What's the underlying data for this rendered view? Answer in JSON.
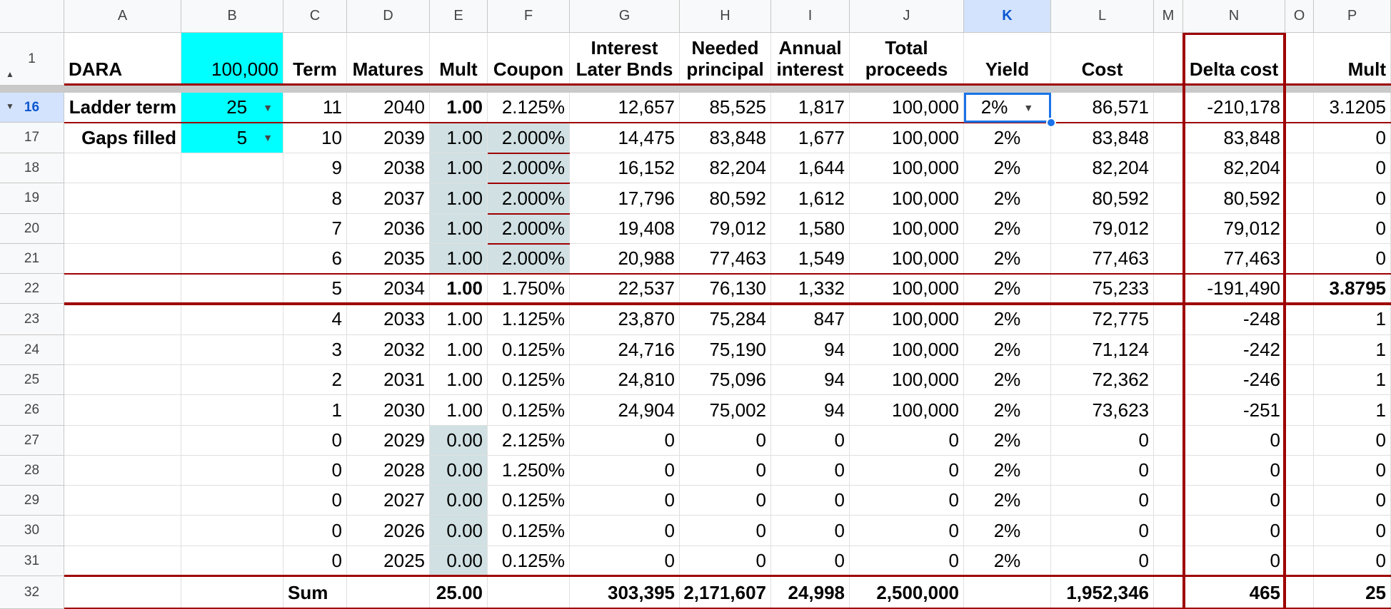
{
  "columns": [
    "A",
    "B",
    "C",
    "D",
    "E",
    "F",
    "G",
    "H",
    "I",
    "J",
    "K",
    "L",
    "M",
    "N",
    "O",
    "P"
  ],
  "selected_column": "K",
  "selected_row": "16",
  "header_row": {
    "row_number": "1",
    "A": "DARA",
    "B": "100,000",
    "C": "Term",
    "D": "Matures",
    "E": "Mult",
    "F": "Coupon",
    "G1": "Interest",
    "G2": "Later Bnds",
    "H1": "Needed",
    "H2": "principal",
    "I1": "Annual",
    "I2": "interest",
    "J1": "Total",
    "J2": "proceeds",
    "K": "Yield",
    "L": "Cost",
    "N": "Delta cost",
    "P": "Mult"
  },
  "rows": [
    {
      "num": "16",
      "A": "Ladder term",
      "B": "25",
      "C": "11",
      "D": "2040",
      "E": "1.00",
      "F": "2.125%",
      "G": "12,657",
      "H": "85,525",
      "I": "1,817",
      "J": "100,000",
      "K": "2%",
      "L": "86,571",
      "N": "-210,178",
      "P": "3.1205"
    },
    {
      "num": "17",
      "A": "Gaps filled",
      "B": "5",
      "C": "10",
      "D": "2039",
      "E": "1.00",
      "F": "2.000%",
      "G": "14,475",
      "H": "83,848",
      "I": "1,677",
      "J": "100,000",
      "K": "2%",
      "L": "83,848",
      "N": "83,848",
      "P": "0"
    },
    {
      "num": "18",
      "A": "",
      "B": "",
      "C": "9",
      "D": "2038",
      "E": "1.00",
      "F": "2.000%",
      "G": "16,152",
      "H": "82,204",
      "I": "1,644",
      "J": "100,000",
      "K": "2%",
      "L": "82,204",
      "N": "82,204",
      "P": "0"
    },
    {
      "num": "19",
      "A": "",
      "B": "",
      "C": "8",
      "D": "2037",
      "E": "1.00",
      "F": "2.000%",
      "G": "17,796",
      "H": "80,592",
      "I": "1,612",
      "J": "100,000",
      "K": "2%",
      "L": "80,592",
      "N": "80,592",
      "P": "0"
    },
    {
      "num": "20",
      "A": "",
      "B": "",
      "C": "7",
      "D": "2036",
      "E": "1.00",
      "F": "2.000%",
      "G": "19,408",
      "H": "79,012",
      "I": "1,580",
      "J": "100,000",
      "K": "2%",
      "L": "79,012",
      "N": "79,012",
      "P": "0"
    },
    {
      "num": "21",
      "A": "",
      "B": "",
      "C": "6",
      "D": "2035",
      "E": "1.00",
      "F": "2.000%",
      "G": "20,988",
      "H": "77,463",
      "I": "1,549",
      "J": "100,000",
      "K": "2%",
      "L": "77,463",
      "N": "77,463",
      "P": "0"
    },
    {
      "num": "22",
      "A": "",
      "B": "",
      "C": "5",
      "D": "2034",
      "E": "1.00",
      "F": "1.750%",
      "G": "22,537",
      "H": "76,130",
      "I": "1,332",
      "J": "100,000",
      "K": "2%",
      "L": "75,233",
      "N": "-191,490",
      "P": "3.8795"
    },
    {
      "num": "23",
      "A": "",
      "B": "",
      "C": "4",
      "D": "2033",
      "E": "1.00",
      "F": "1.125%",
      "G": "23,870",
      "H": "75,284",
      "I": "847",
      "J": "100,000",
      "K": "2%",
      "L": "72,775",
      "N": "-248",
      "P": "1"
    },
    {
      "num": "24",
      "A": "",
      "B": "",
      "C": "3",
      "D": "2032",
      "E": "1.00",
      "F": "0.125%",
      "G": "24,716",
      "H": "75,190",
      "I": "94",
      "J": "100,000",
      "K": "2%",
      "L": "71,124",
      "N": "-242",
      "P": "1"
    },
    {
      "num": "25",
      "A": "",
      "B": "",
      "C": "2",
      "D": "2031",
      "E": "1.00",
      "F": "0.125%",
      "G": "24,810",
      "H": "75,096",
      "I": "94",
      "J": "100,000",
      "K": "2%",
      "L": "72,362",
      "N": "-246",
      "P": "1"
    },
    {
      "num": "26",
      "A": "",
      "B": "",
      "C": "1",
      "D": "2030",
      "E": "1.00",
      "F": "0.125%",
      "G": "24,904",
      "H": "75,002",
      "I": "94",
      "J": "100,000",
      "K": "2%",
      "L": "73,623",
      "N": "-251",
      "P": "1"
    },
    {
      "num": "27",
      "A": "",
      "B": "",
      "C": "0",
      "D": "2029",
      "E": "0.00",
      "F": "2.125%",
      "G": "0",
      "H": "0",
      "I": "0",
      "J": "0",
      "K": "2%",
      "L": "0",
      "N": "0",
      "P": "0"
    },
    {
      "num": "28",
      "A": "",
      "B": "",
      "C": "0",
      "D": "2028",
      "E": "0.00",
      "F": "1.250%",
      "G": "0",
      "H": "0",
      "I": "0",
      "J": "0",
      "K": "2%",
      "L": "0",
      "N": "0",
      "P": "0"
    },
    {
      "num": "29",
      "A": "",
      "B": "",
      "C": "0",
      "D": "2027",
      "E": "0.00",
      "F": "0.125%",
      "G": "0",
      "H": "0",
      "I": "0",
      "J": "0",
      "K": "2%",
      "L": "0",
      "N": "0",
      "P": "0"
    },
    {
      "num": "30",
      "A": "",
      "B": "",
      "C": "0",
      "D": "2026",
      "E": "0.00",
      "F": "0.125%",
      "G": "0",
      "H": "0",
      "I": "0",
      "J": "0",
      "K": "2%",
      "L": "0",
      "N": "0",
      "P": "0"
    },
    {
      "num": "31",
      "A": "",
      "B": "",
      "C": "0",
      "D": "2025",
      "E": "0.00",
      "F": "0.125%",
      "G": "0",
      "H": "0",
      "I": "0",
      "J": "0",
      "K": "2%",
      "L": "0",
      "N": "0",
      "P": "0"
    }
  ],
  "sum_row": {
    "num": "32",
    "C": "Sum",
    "E": "25.00",
    "G": "303,395",
    "H": "2,171,607",
    "I": "24,998",
    "J": "2,500,000",
    "L": "1,952,346",
    "N": "465",
    "P": "25"
  },
  "icons": {
    "dropdown": "chevron-down-icon",
    "row_collapse": "triangle-up-icon",
    "row_expand": "triangle-down-icon",
    "fill_handle": "fill-handle-icon"
  },
  "colors": {
    "input_fill": "#00ffff",
    "gray_fill": "#d0e0e3",
    "border_red": "#9e0000",
    "selection": "#1a73e8"
  }
}
